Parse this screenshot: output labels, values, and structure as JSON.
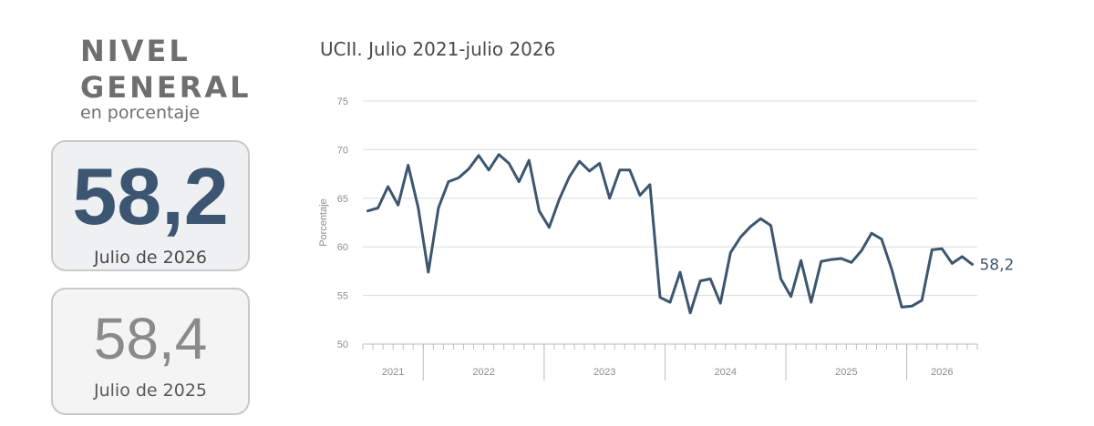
{
  "panel": {
    "title_line1": "NIVEL",
    "title_line2": "GENERAL",
    "subtitle": "en porcentaje",
    "current": {
      "value": "58,2",
      "label": "Julio de 2026"
    },
    "previous": {
      "value": "58,4",
      "label": "Julio de 2025"
    }
  },
  "colors": {
    "line": "#3d5670",
    "grid": "#dddddd",
    "axis": "#bdbdbd",
    "tick_text": "#8c8c8c"
  },
  "chart_data": {
    "type": "line",
    "title": "UCII. Julio 2021-julio 2026",
    "ylabel": "Porcentaje",
    "xlabel": "",
    "ylim": [
      50,
      75
    ],
    "yticks": [
      50,
      55,
      60,
      65,
      70,
      75
    ],
    "grid": true,
    "end_label": "58,2",
    "year_groups": [
      {
        "label": "2021",
        "months": 6
      },
      {
        "label": "2022",
        "months": 12
      },
      {
        "label": "2023",
        "months": 12
      },
      {
        "label": "2024",
        "months": 12
      },
      {
        "label": "2025",
        "months": 12
      },
      {
        "label": "2026",
        "months": 7
      }
    ],
    "series": [
      {
        "values": [
          63.7,
          64.0,
          66.2,
          64.3,
          68.4,
          64.0,
          57.4,
          64.0,
          66.7,
          67.1,
          68.0,
          69.4,
          67.9,
          69.5,
          68.6,
          66.7,
          68.9,
          63.7,
          62.0,
          64.9,
          67.2,
          68.8,
          67.8,
          68.6,
          65.0,
          67.9,
          67.9,
          65.3,
          66.4,
          54.8,
          54.3,
          57.4,
          53.2,
          56.5,
          56.7,
          54.2,
          59.4,
          61.0,
          62.1,
          62.9,
          62.2,
          56.7,
          54.9,
          58.6,
          54.3,
          58.5,
          58.7,
          58.8,
          58.4,
          59.6,
          61.4,
          60.8,
          57.7,
          53.8,
          53.9,
          54.5,
          59.7,
          59.8,
          58.3,
          59.0,
          58.2
        ]
      }
    ]
  }
}
